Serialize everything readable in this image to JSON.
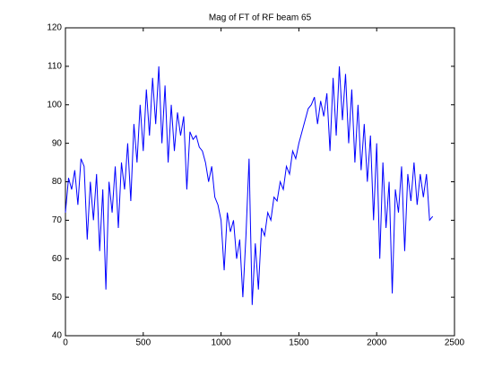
{
  "chart_data": {
    "type": "line",
    "title": "Mag of FT of RF beam 65",
    "x": [
      0,
      20,
      40,
      60,
      80,
      100,
      120,
      140,
      160,
      180,
      200,
      220,
      240,
      260,
      280,
      300,
      320,
      340,
      360,
      380,
      400,
      420,
      440,
      460,
      480,
      500,
      520,
      540,
      560,
      580,
      600,
      620,
      640,
      660,
      680,
      700,
      720,
      740,
      760,
      780,
      800,
      820,
      840,
      860,
      880,
      900,
      920,
      940,
      960,
      980,
      1000,
      1020,
      1040,
      1060,
      1080,
      1100,
      1120,
      1140,
      1160,
      1180,
      1200,
      1220,
      1240,
      1260,
      1280,
      1300,
      1320,
      1340,
      1360,
      1380,
      1400,
      1420,
      1440,
      1460,
      1480,
      1500,
      1520,
      1540,
      1560,
      1580,
      1600,
      1620,
      1640,
      1660,
      1680,
      1700,
      1720,
      1740,
      1760,
      1780,
      1800,
      1820,
      1840,
      1860,
      1880,
      1900,
      1920,
      1940,
      1960,
      1980,
      2000,
      2020,
      2040,
      2060,
      2080,
      2100,
      2120,
      2140,
      2160,
      2180,
      2200,
      2220,
      2240,
      2260,
      2280,
      2300,
      2320,
      2340,
      2360
    ],
    "series": [
      {
        "name": "beam 65",
        "color": "#0000ff",
        "values": [
          72,
          81,
          78,
          83,
          74,
          86,
          84,
          65,
          80,
          70,
          82,
          62,
          78,
          52,
          80,
          72,
          84,
          68,
          85,
          78,
          90,
          75,
          95,
          85,
          100,
          88,
          104,
          92,
          107,
          95,
          110,
          90,
          105,
          85,
          100,
          88,
          98,
          92,
          97,
          78,
          93,
          91,
          92,
          89,
          88,
          85,
          80,
          84,
          76,
          74,
          70,
          57,
          72,
          67,
          70,
          60,
          65,
          50,
          66,
          86,
          48,
          64,
          52,
          68,
          66,
          72,
          70,
          76,
          75,
          80,
          78,
          84,
          82,
          88,
          86,
          90,
          93,
          96,
          99,
          100,
          102,
          95,
          101,
          97,
          103,
          88,
          107,
          92,
          110,
          96,
          108,
          90,
          104,
          85,
          100,
          83,
          95,
          80,
          92,
          70,
          90,
          60,
          85,
          68,
          80,
          51,
          78,
          72,
          84,
          62,
          82,
          75,
          85,
          74,
          82,
          76,
          82,
          70,
          71
        ]
      }
    ],
    "xlim": [
      0,
      2500
    ],
    "xticks": [
      0,
      500,
      1000,
      1500,
      2000,
      2500
    ],
    "ylim": [
      40,
      120
    ],
    "yticks": [
      40,
      50,
      60,
      70,
      80,
      90,
      100,
      110,
      120
    ]
  }
}
